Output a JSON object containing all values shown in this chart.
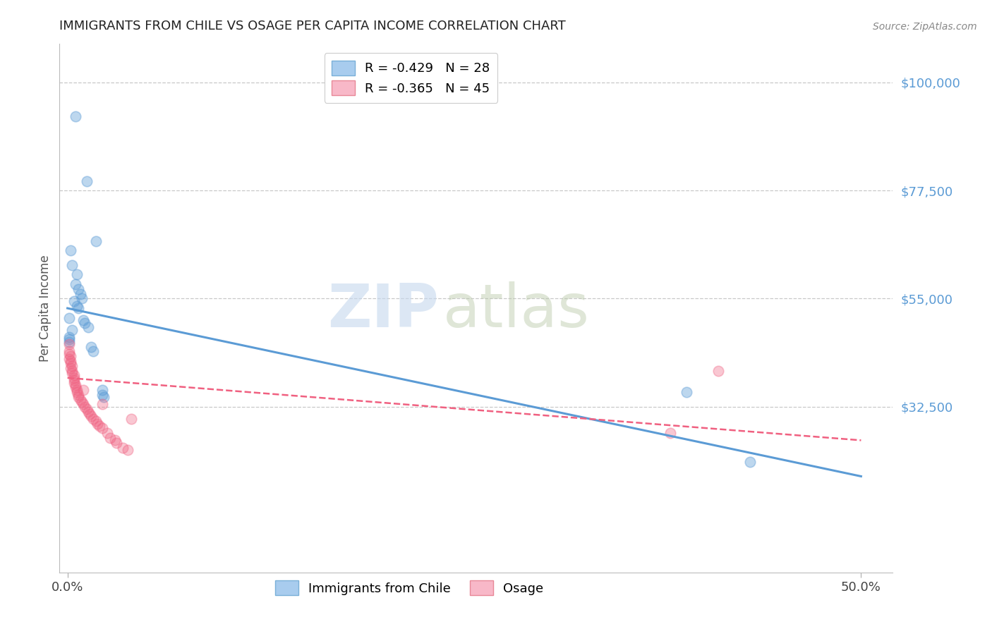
{
  "title": "IMMIGRANTS FROM CHILE VS OSAGE PER CAPITA INCOME CORRELATION CHART",
  "source": "Source: ZipAtlas.com",
  "ylabel": "Per Capita Income",
  "xlim": [
    -0.005,
    0.52
  ],
  "ylim": [
    -2000,
    108000
  ],
  "watermark_zip": "ZIP",
  "watermark_atlas": "atlas",
  "legend_entries": [
    {
      "label": "R = -0.429   N = 28",
      "color": "#7ab4e0"
    },
    {
      "label": "R = -0.365   N = 45",
      "color": "#f48098"
    }
  ],
  "legend_series": [
    "Immigrants from Chile",
    "Osage"
  ],
  "blue_color": "#5b9bd5",
  "pink_color": "#f06080",
  "blue_scatter": [
    [
      0.005,
      93000
    ],
    [
      0.012,
      79500
    ],
    [
      0.018,
      67000
    ],
    [
      0.002,
      65000
    ],
    [
      0.003,
      62000
    ],
    [
      0.006,
      60000
    ],
    [
      0.005,
      58000
    ],
    [
      0.007,
      57000
    ],
    [
      0.008,
      56000
    ],
    [
      0.009,
      55000
    ],
    [
      0.004,
      54500
    ],
    [
      0.006,
      53500
    ],
    [
      0.007,
      53000
    ],
    [
      0.001,
      51000
    ],
    [
      0.01,
      50500
    ],
    [
      0.011,
      50000
    ],
    [
      0.013,
      49000
    ],
    [
      0.003,
      48500
    ],
    [
      0.001,
      47000
    ],
    [
      0.001,
      46500
    ],
    [
      0.015,
      45000
    ],
    [
      0.016,
      44000
    ],
    [
      0.001,
      46000
    ],
    [
      0.022,
      36000
    ],
    [
      0.022,
      35000
    ],
    [
      0.023,
      34500
    ],
    [
      0.39,
      35500
    ],
    [
      0.43,
      21000
    ]
  ],
  "pink_scatter": [
    [
      0.001,
      45500
    ],
    [
      0.001,
      44000
    ],
    [
      0.001,
      43500
    ],
    [
      0.002,
      43000
    ],
    [
      0.001,
      42500
    ],
    [
      0.002,
      42000
    ],
    [
      0.002,
      41500
    ],
    [
      0.003,
      41000
    ],
    [
      0.002,
      40500
    ],
    [
      0.003,
      40000
    ],
    [
      0.003,
      39500
    ],
    [
      0.004,
      39000
    ],
    [
      0.004,
      38500
    ],
    [
      0.004,
      38000
    ],
    [
      0.004,
      37500
    ],
    [
      0.005,
      37000
    ],
    [
      0.005,
      36500
    ],
    [
      0.006,
      36000
    ],
    [
      0.006,
      35500
    ],
    [
      0.007,
      35000
    ],
    [
      0.007,
      34500
    ],
    [
      0.008,
      34000
    ],
    [
      0.009,
      33500
    ],
    [
      0.01,
      33000
    ],
    [
      0.011,
      32500
    ],
    [
      0.012,
      32000
    ],
    [
      0.013,
      31500
    ],
    [
      0.014,
      31000
    ],
    [
      0.015,
      30500
    ],
    [
      0.016,
      30000
    ],
    [
      0.018,
      29500
    ],
    [
      0.019,
      29000
    ],
    [
      0.02,
      28500
    ],
    [
      0.022,
      28000
    ],
    [
      0.025,
      27000
    ],
    [
      0.027,
      26000
    ],
    [
      0.03,
      25500
    ],
    [
      0.031,
      25000
    ],
    [
      0.035,
      24000
    ],
    [
      0.038,
      23500
    ],
    [
      0.04,
      30000
    ],
    [
      0.022,
      33000
    ],
    [
      0.01,
      36000
    ],
    [
      0.41,
      40000
    ],
    [
      0.38,
      27000
    ]
  ],
  "blue_line_x": [
    0.0,
    0.5
  ],
  "blue_line_y": [
    53000,
    18000
  ],
  "pink_line_x": [
    0.0,
    0.5
  ],
  "pink_line_y": [
    38500,
    25500
  ],
  "ytick_positions": [
    0,
    32500,
    55000,
    77500,
    100000
  ],
  "ytick_labels": [
    "",
    "$32,500",
    "$55,000",
    "$77,500",
    "$100,000"
  ],
  "xtick_positions": [
    0.0,
    0.5
  ],
  "xtick_labels": [
    "0.0%",
    "50.0%"
  ],
  "background_color": "#ffffff",
  "grid_color": "#c8c8c8",
  "title_color": "#222222",
  "axis_label_color": "#555555",
  "ytick_color": "#5b9bd5",
  "xtick_color": "#444444",
  "source_color": "#888888"
}
